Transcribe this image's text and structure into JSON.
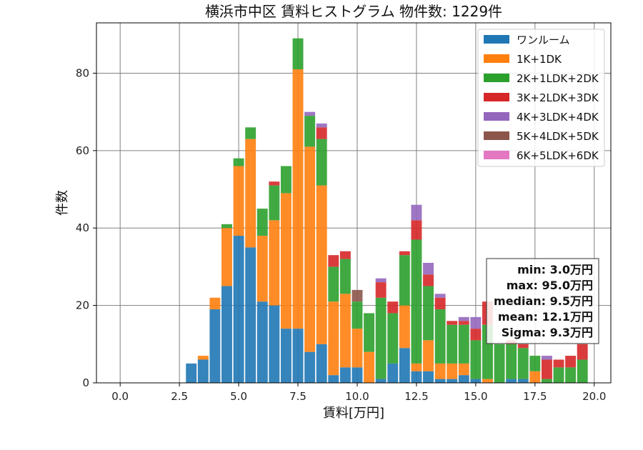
{
  "chart_data": {
    "type": "bar",
    "stacked": true,
    "title": "横浜市中区 賃料ヒストグラム 物件数: 1229件",
    "xlabel": "賃料[万円]",
    "ylabel": "件数",
    "xlim": [
      -1.0,
      20.7
    ],
    "ylim": [
      0,
      93
    ],
    "xticks": [
      0.0,
      2.5,
      5.0,
      7.5,
      10.0,
      12.5,
      15.0,
      17.5,
      20.0
    ],
    "xtick_labels": [
      "0.0",
      "2.5",
      "5.0",
      "7.5",
      "10.0",
      "12.5",
      "15.0",
      "17.5",
      "20.0"
    ],
    "yticks": [
      0,
      20,
      40,
      60,
      80
    ],
    "ytick_labels": [
      "0",
      "20",
      "40",
      "60",
      "80"
    ],
    "grid": true,
    "legend_position": "top-right",
    "bin_width": 0.5,
    "x": [
      3.0,
      3.5,
      4.0,
      4.5,
      5.0,
      5.5,
      6.0,
      6.5,
      7.0,
      7.5,
      8.0,
      8.5,
      9.0,
      9.5,
      10.0,
      10.5,
      11.0,
      11.5,
      12.0,
      12.5,
      13.0,
      13.5,
      14.0,
      14.5,
      15.0,
      15.5,
      16.0,
      16.5,
      17.0,
      17.5,
      18.0,
      18.5,
      19.0,
      19.5
    ],
    "series": [
      {
        "name": "ワンルーム",
        "color": "#1f77b4",
        "values": [
          5,
          6,
          19,
          25,
          38,
          35,
          21,
          20,
          14,
          14,
          8,
          10,
          2,
          4,
          4,
          0,
          1,
          5,
          9,
          3,
          3,
          1,
          1,
          2,
          1,
          0,
          0,
          1,
          1,
          0,
          0,
          0,
          0,
          0
        ]
      },
      {
        "name": "1K+1DK",
        "color": "#ff7f0e",
        "values": [
          0,
          1,
          3,
          15,
          18,
          28,
          17,
          22,
          35,
          67,
          53,
          41,
          19,
          19,
          10,
          8,
          0,
          0,
          11,
          2,
          8,
          4,
          4,
          3,
          0,
          1,
          0,
          0,
          0,
          3,
          0,
          0,
          0,
          0
        ]
      },
      {
        "name": "2K+1LDK+2DK",
        "color": "#2ca02c",
        "values": [
          0,
          0,
          0,
          1,
          2,
          3,
          7,
          9,
          7,
          8,
          8,
          12,
          9,
          9,
          7,
          10,
          21,
          13,
          13,
          32,
          14,
          14,
          10,
          10,
          10,
          14,
          10,
          9,
          8,
          4,
          1,
          4,
          4,
          6
        ]
      },
      {
        "name": "3K+2LDK+3DK",
        "color": "#d62728",
        "values": [
          0,
          0,
          0,
          0,
          0,
          0,
          0,
          1,
          0,
          0,
          0,
          3,
          3,
          2,
          0,
          0,
          4,
          3,
          1,
          5,
          3,
          3,
          1,
          1,
          3,
          6,
          0,
          1,
          1,
          0,
          5,
          2,
          3,
          4
        ]
      },
      {
        "name": "4K+3LDK+4DK",
        "color": "#9467bd",
        "values": [
          0,
          0,
          0,
          0,
          0,
          0,
          0,
          0,
          0,
          0,
          1,
          1,
          0,
          0,
          0,
          0,
          1,
          0,
          0,
          4,
          3,
          1,
          0,
          1,
          3,
          0,
          0,
          0,
          0,
          0,
          1,
          0,
          0,
          0
        ]
      },
      {
        "name": "5K+4LDK+5DK",
        "color": "#8c564b",
        "values": [
          0,
          0,
          0,
          0,
          0,
          0,
          0,
          0,
          0,
          0,
          0,
          0,
          0,
          0,
          3,
          0,
          0,
          0,
          0,
          0,
          0,
          0,
          0,
          0,
          0,
          0,
          0,
          0,
          0,
          0,
          0,
          0,
          0,
          0
        ]
      },
      {
        "name": "6K+5LDK+6DK",
        "color": "#e377c2",
        "values": [
          0,
          0,
          0,
          0,
          0,
          0,
          0,
          0,
          0,
          0,
          0,
          0,
          0,
          0,
          0,
          0,
          0,
          0,
          0,
          0,
          0,
          0,
          0,
          0,
          0,
          0,
          0,
          0,
          0,
          0,
          0,
          0,
          0,
          0
        ]
      }
    ],
    "stats": [
      "min: 3.0万円",
      "max: 95.0万円",
      "median: 9.5万円",
      "mean: 12.1万円",
      "Sigma: 9.3万円"
    ]
  }
}
